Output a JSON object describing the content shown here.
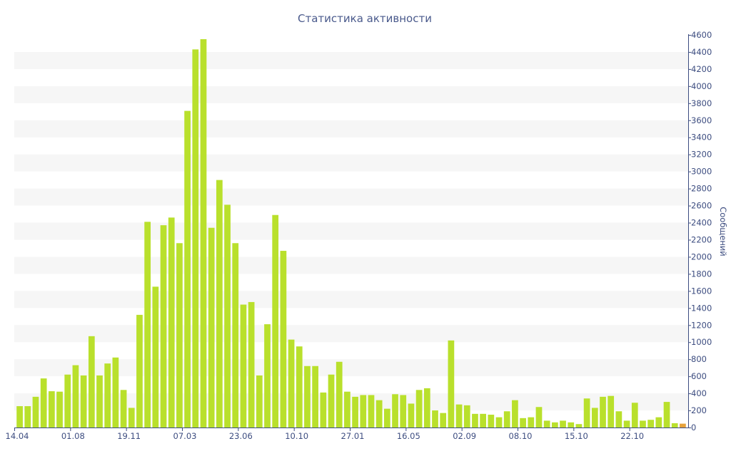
{
  "chart_data": {
    "type": "bar",
    "title": "Статистика активности",
    "xlabel": "",
    "ylabel": "Сообщений",
    "ylim": [
      0,
      4600
    ],
    "ytick_step": 200,
    "grid": "alternating horizontal bands",
    "bar_color": "#b9e02c",
    "last_bar_color": "#e6a23c",
    "axis_color": "#3d4d80",
    "band_color": "#f6f6f6",
    "x_tick_labels": [
      {
        "label": "14.04",
        "index": 0
      },
      {
        "label": "01.08",
        "index": 7
      },
      {
        "label": "19.11",
        "index": 14
      },
      {
        "label": "07.03",
        "index": 21
      },
      {
        "label": "23.06",
        "index": 28
      },
      {
        "label": "10.10",
        "index": 35
      },
      {
        "label": "27.01",
        "index": 42
      },
      {
        "label": "16.05",
        "index": 49
      },
      {
        "label": "02.09",
        "index": 56
      },
      {
        "label": "08.10",
        "index": 63
      },
      {
        "label": "15.10",
        "index": 70
      },
      {
        "label": "22.10",
        "index": 77
      }
    ],
    "values": [
      250,
      250,
      360,
      575,
      425,
      420,
      620,
      730,
      610,
      1070,
      610,
      750,
      820,
      440,
      230,
      1320,
      2410,
      1650,
      2370,
      2460,
      2160,
      3710,
      4430,
      4550,
      2340,
      2900,
      2610,
      2160,
      1440,
      1470,
      610,
      1210,
      2490,
      2070,
      1030,
      950,
      720,
      720,
      410,
      620,
      770,
      420,
      360,
      380,
      380,
      320,
      220,
      390,
      380,
      280,
      440,
      460,
      200,
      170,
      1020,
      270,
      260,
      160,
      160,
      150,
      120,
      190,
      320,
      110,
      120,
      240,
      80,
      60,
      80,
      60,
      40,
      340,
      230,
      360,
      370,
      190,
      80,
      290,
      80,
      90,
      120,
      300,
      50,
      45
    ]
  }
}
